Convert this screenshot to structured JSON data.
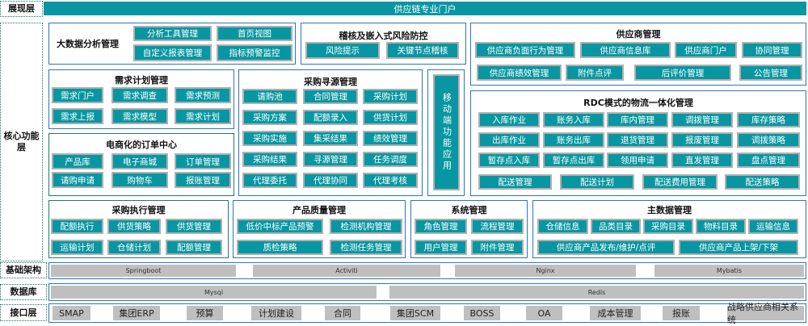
{
  "colors": {
    "teal": "#0897a2",
    "blue_border": "#2e75b6",
    "green_border": "#1f7a6c",
    "gray": "#bfbfbf"
  },
  "layers": {
    "presentation": {
      "label": "展现层",
      "portal": "供应链专业门户"
    },
    "core": {
      "label": "核心功能层"
    },
    "infrastructure": {
      "label": "基础架构",
      "items": [
        "Springboot",
        "Activiti",
        "Nginx",
        "Mybatis"
      ]
    },
    "database": {
      "label": "数据库",
      "items": [
        "Mysql",
        "Redis"
      ]
    },
    "interface": {
      "label": "接口层",
      "items": [
        "SMAP",
        "集团ERP",
        "预算",
        "计划建设",
        "合同",
        "集团SCM",
        "BOSS",
        "OA",
        "成本管理",
        "报账",
        "战略供应商相关系统"
      ]
    }
  },
  "modules": {
    "bigdata": {
      "title": "大数据分析管理",
      "items": [
        "分析工具管理",
        "首页视图",
        "自定义报表管理",
        "指标预警监控"
      ]
    },
    "audit": {
      "title": "稽核及嵌入式风险防控",
      "items": [
        "风险提示",
        "关键节点稽核"
      ]
    },
    "supplier": {
      "title": "供应商管理",
      "items": [
        "供应商负面行为管理",
        "供应商信息库",
        "供应商门户",
        "协同管理",
        "供应商绩效管理",
        "附件点评",
        "后评价管理",
        "公告管理"
      ]
    },
    "demand": {
      "title": "需求计划管理",
      "items": [
        "需求门户",
        "需求调查",
        "需求预测",
        "需求上报",
        "需求模型",
        "需求计划"
      ]
    },
    "ecommerce": {
      "title": "电商化的订单中心",
      "items": [
        "产品库",
        "电子商城",
        "订单管理",
        "请购申请",
        "购物车",
        "报账管理"
      ]
    },
    "sourcing": {
      "title": "采购寻源管理",
      "items": [
        "请购池",
        "合同管理",
        "采购计划",
        "采购方案",
        "配额录入",
        "供货计划",
        "采购实施",
        "集采结果",
        "绩效管理",
        "采购结果",
        "寻源管理",
        "任务调度",
        "代理委托",
        "代理协同",
        "代理考核"
      ]
    },
    "mobile": {
      "title": "移动端功能应用"
    },
    "rdc": {
      "title": "RDC模式的物流一体化管理",
      "items": [
        "入库作业",
        "账务入库",
        "库内管理",
        "调拨管理",
        "库存策略",
        "出库作业",
        "账务出库",
        "退货管理",
        "报废管理",
        "调拨策略",
        "暂存点入库",
        "暂存点出库",
        "领用申请",
        "直发管理",
        "盘点管理",
        "配送管理",
        "配送计划",
        "配送费用管理",
        "配送策略"
      ]
    },
    "execution": {
      "title": "采购执行管理",
      "items": [
        "配额执行",
        "供货策略",
        "供货管理",
        "运输计划",
        "仓储计划",
        "配额管理"
      ]
    },
    "quality": {
      "title": "产品质量管理",
      "items": [
        "低价中标产品预警",
        "检测机构管理",
        "质检策略",
        "检测任务管理"
      ]
    },
    "system": {
      "title": "系统管理",
      "items": [
        "角色管理",
        "流程管理",
        "用户管理",
        "附件管理"
      ]
    },
    "masterdata": {
      "title": "主数据管理",
      "items": [
        "仓储信息",
        "品类目录",
        "采购目录",
        "物料目录",
        "运输信息",
        "供应商产品发布/维护/点评",
        "供应商产品上架/下架"
      ]
    }
  }
}
